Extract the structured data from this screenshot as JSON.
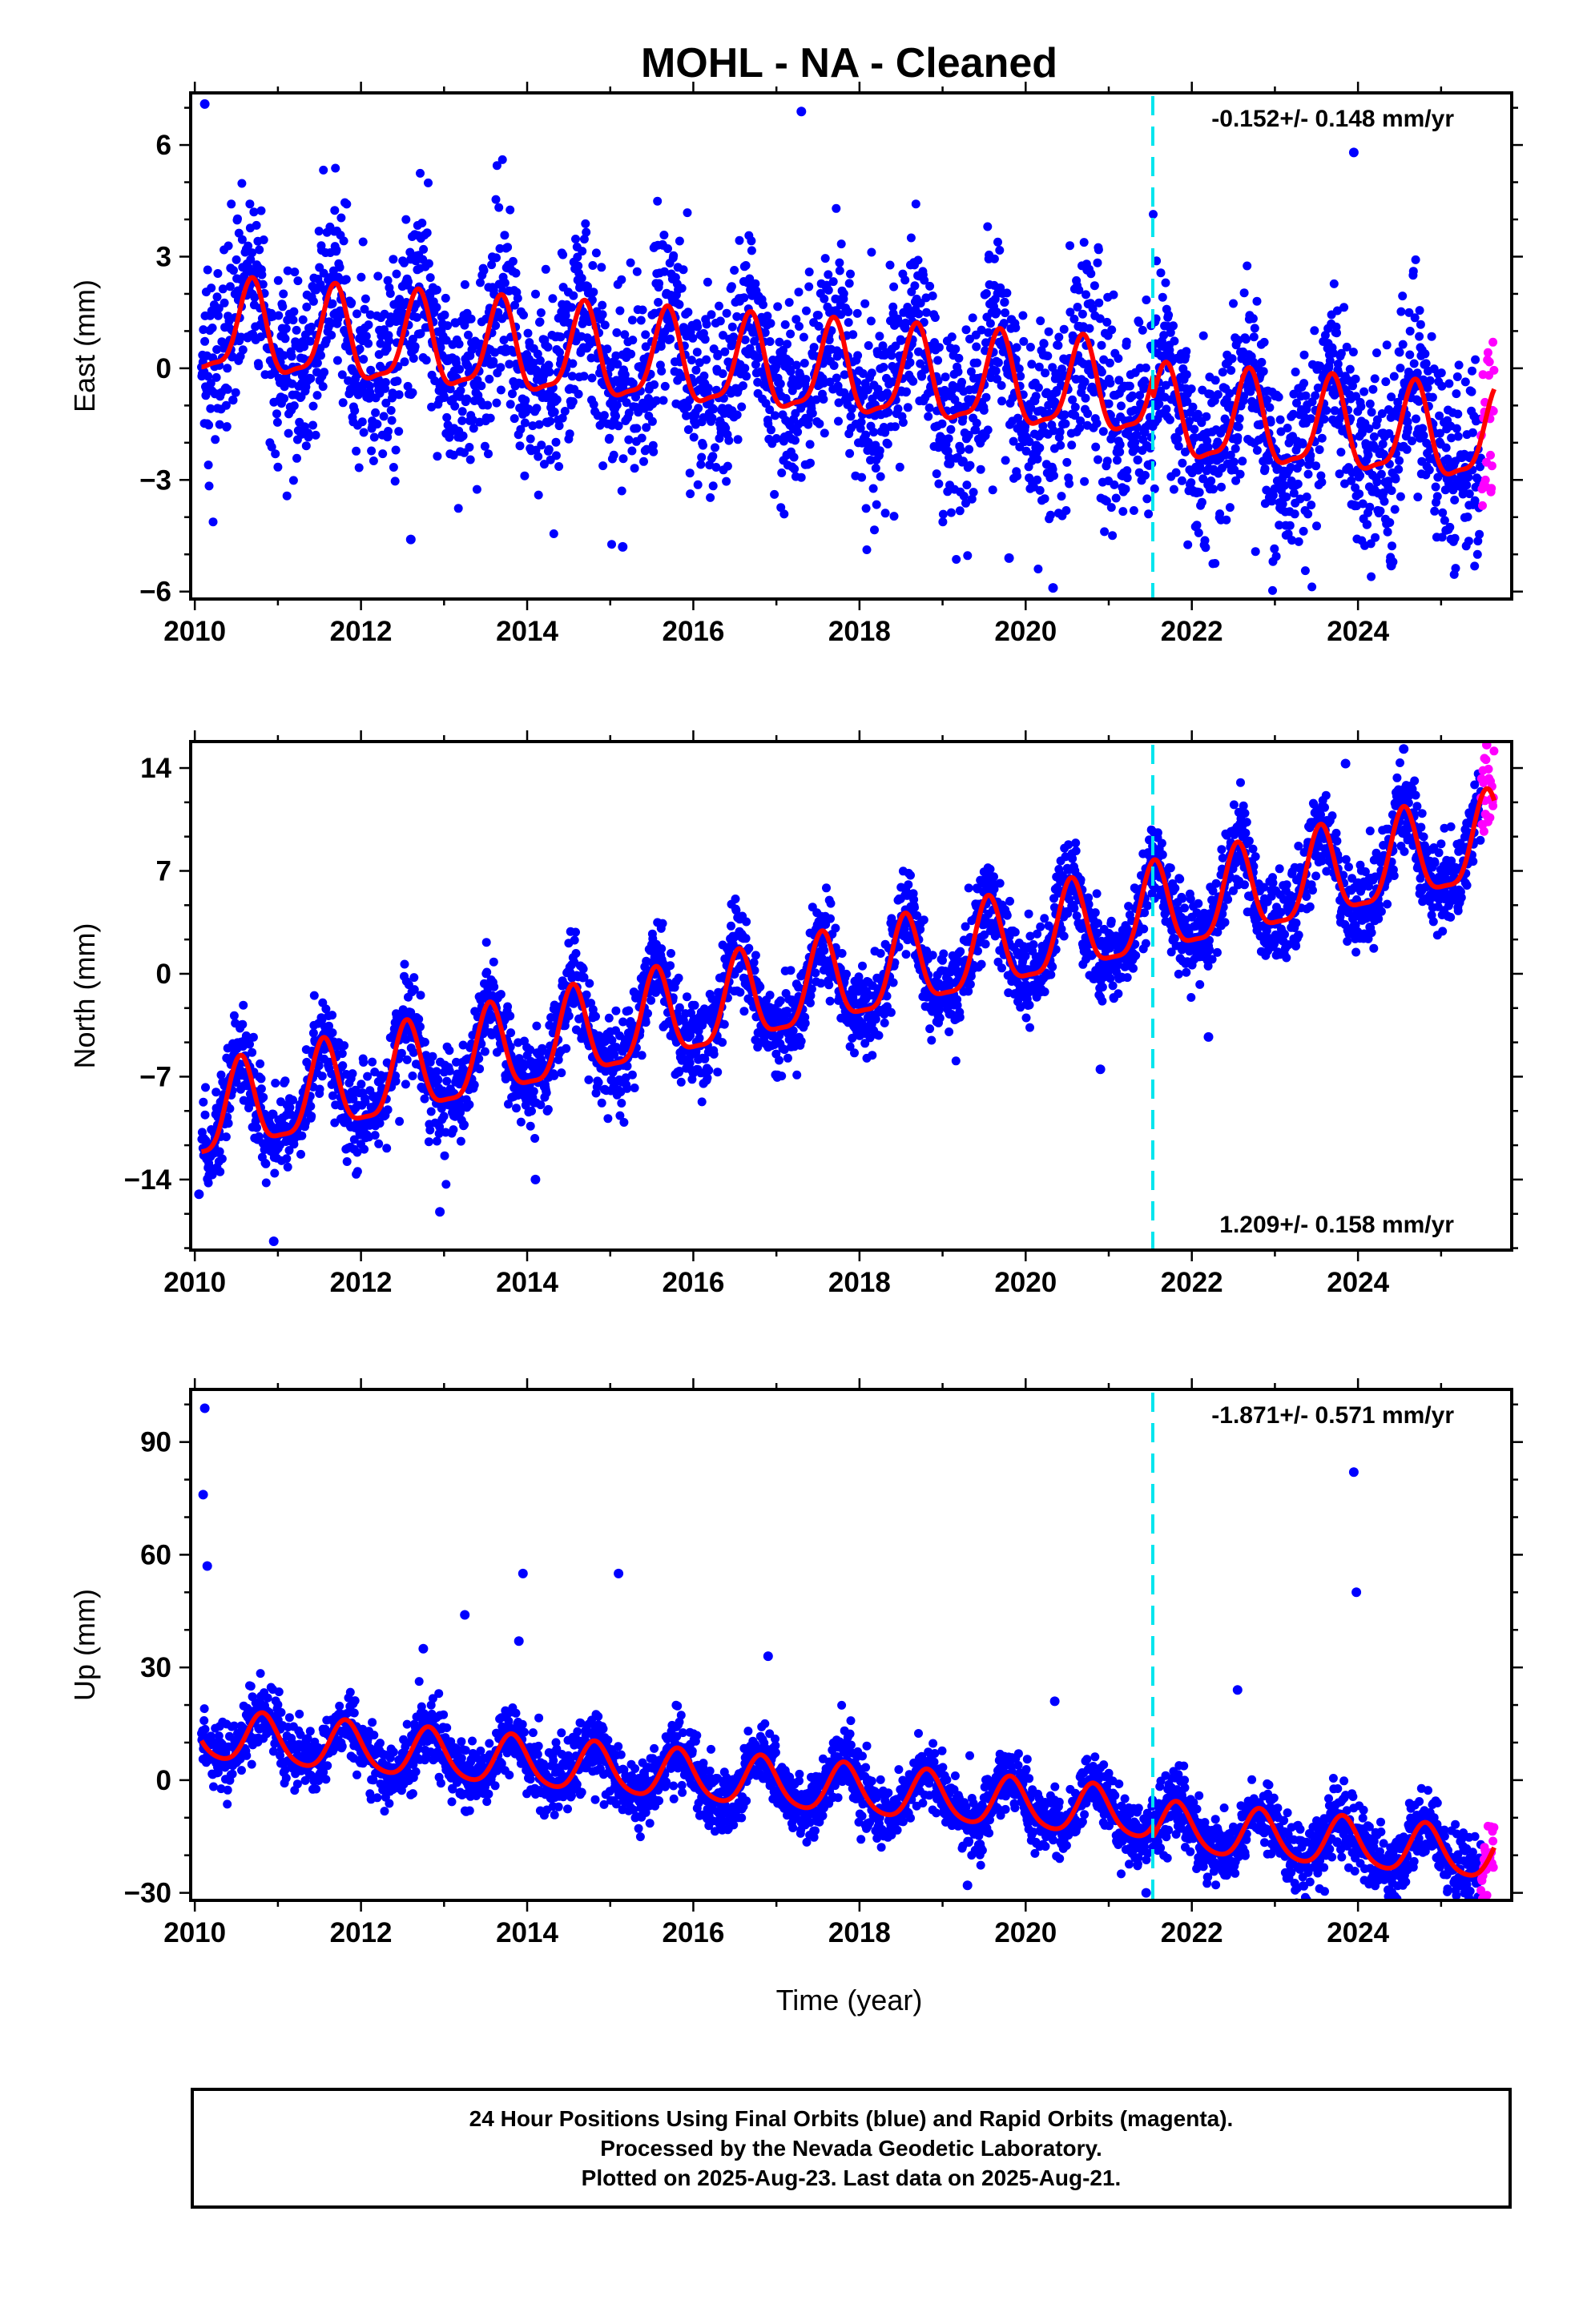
{
  "title": "MOHL  - NA - Cleaned",
  "xlabel": "Time (year)",
  "footer": {
    "line1": "24 Hour Positions Using Final Orbits (blue) and Rapid Orbits (magenta).",
    "line2": "Processed by the Nevada Geodetic Laboratory.",
    "line3": "Plotted on 2025-Aug-23. Last data on 2025-Aug-21."
  },
  "colors": {
    "final_orbits": "#0000ff",
    "rapid_orbits": "#ff00ff",
    "model_fit": "#ff0000",
    "equipment_change": "#00e5ee"
  },
  "chart_data": [
    {
      "type": "scatter",
      "component": "east",
      "ylabel": "East (mm)",
      "rate_text": "-0.152+/- 0.148 mm/yr",
      "rate_position": "top-right",
      "xlim": [
        2009.95,
        2025.85
      ],
      "ylim": [
        -6.2,
        7.4
      ],
      "xticks": [
        2010,
        2012,
        2014,
        2016,
        2018,
        2020,
        2022,
        2024
      ],
      "xtick_labels": [
        "2010",
        "2012",
        "2014",
        "2016",
        "2018",
        "2020",
        "2022",
        "2024"
      ],
      "yticks": [
        -6,
        -3,
        0,
        3,
        6
      ],
      "ytick_labels": [
        "−6",
        "−3",
        "0",
        "3",
        "6"
      ],
      "equipment_change_year": 2021.53,
      "data_start": 2010.08,
      "data_end": 2025.64,
      "rapid_start": 2025.48,
      "model": {
        "intercept_2010": 1.0,
        "rate_mm_per_yr": -0.152,
        "annual_amp": 1.2,
        "annual_peak": 0.68,
        "semiannual_amp": 0.35,
        "semiannual_peak": 0.2,
        "equipment_offset": 0.6
      },
      "daily_scatter_mm": 1.3,
      "outliers": [
        {
          "x": 2010.12,
          "y": 7.1
        },
        {
          "x": 2017.3,
          "y": 6.9
        },
        {
          "x": 2015.15,
          "y": -4.8
        },
        {
          "x": 2020.33,
          "y": -5.9
        },
        {
          "x": 2023.95,
          "y": 5.8
        },
        {
          "x": 2012.6,
          "y": -4.6
        },
        {
          "x": 2019.8,
          "y": -5.1
        },
        {
          "x": 2024.4,
          "y": -5.3
        }
      ]
    },
    {
      "type": "scatter",
      "component": "north",
      "ylabel": "North (mm)",
      "rate_text": "1.209+/- 0.158 mm/yr",
      "rate_position": "bottom-right",
      "xlim": [
        2009.95,
        2025.85
      ],
      "ylim": [
        -18.8,
        15.8
      ],
      "xticks": [
        2010,
        2012,
        2014,
        2016,
        2018,
        2020,
        2022,
        2024
      ],
      "xtick_labels": [
        "2010",
        "2012",
        "2014",
        "2016",
        "2018",
        "2020",
        "2022",
        "2024"
      ],
      "yticks": [
        -14,
        -7,
        0,
        7,
        14
      ],
      "ytick_labels": [
        "−14",
        "−7",
        "0",
        "7",
        "14"
      ],
      "equipment_change_year": 2021.53,
      "data_start": 2010.08,
      "data_end": 2025.64,
      "rapid_start": 2025.48,
      "model": {
        "intercept_2010": -10.0,
        "rate_mm_per_yr": 1.209,
        "annual_amp": 3.0,
        "annual_peak": 0.55,
        "semiannual_amp": 0.8,
        "semiannual_peak": 0.05,
        "equipment_offset": 0.0
      },
      "daily_scatter_mm": 1.5,
      "outliers": [
        {
          "x": 2010.95,
          "y": -18.2
        },
        {
          "x": 2012.95,
          "y": -16.2
        },
        {
          "x": 2014.1,
          "y": -14.0
        },
        {
          "x": 2024.55,
          "y": 15.3
        },
        {
          "x": 2023.85,
          "y": 14.3
        },
        {
          "x": 2022.2,
          "y": -4.3
        },
        {
          "x": 2020.9,
          "y": -6.5
        },
        {
          "x": 2010.05,
          "y": -15.0
        }
      ]
    },
    {
      "type": "scatter",
      "component": "up",
      "ylabel": "Up (mm)",
      "rate_text": "-1.871+/- 0.571 mm/yr",
      "rate_position": "top-right",
      "xlim": [
        2009.95,
        2025.85
      ],
      "ylim": [
        -32,
        104
      ],
      "xticks": [
        2010,
        2012,
        2014,
        2016,
        2018,
        2020,
        2022,
        2024
      ],
      "xtick_labels": [
        "2010",
        "2012",
        "2014",
        "2016",
        "2018",
        "2020",
        "2022",
        "2024"
      ],
      "yticks": [
        -30,
        0,
        30,
        60,
        90
      ],
      "ytick_labels": [
        "−30",
        "0",
        "30",
        "60",
        "90"
      ],
      "equipment_change_year": 2021.53,
      "data_start": 2010.08,
      "data_end": 2025.64,
      "rapid_start": 2025.48,
      "model": {
        "intercept_2010": 12.0,
        "rate_mm_per_yr": -1.871,
        "annual_amp": 6.5,
        "annual_peak": 0.82,
        "semiannual_amp": 1.0,
        "semiannual_peak": 0.3,
        "equipment_offset": 3.0
      },
      "daily_scatter_mm": 4.5,
      "outliers": [
        {
          "x": 2010.12,
          "y": 99
        },
        {
          "x": 2010.1,
          "y": 76
        },
        {
          "x": 2010.15,
          "y": 57
        },
        {
          "x": 2013.25,
          "y": 44
        },
        {
          "x": 2013.95,
          "y": 55
        },
        {
          "x": 2015.1,
          "y": 55
        },
        {
          "x": 2016.9,
          "y": 33
        },
        {
          "x": 2023.95,
          "y": 82
        },
        {
          "x": 2023.98,
          "y": 50
        },
        {
          "x": 2022.55,
          "y": 24
        },
        {
          "x": 2012.75,
          "y": 35
        },
        {
          "x": 2013.9,
          "y": 37
        },
        {
          "x": 2019.3,
          "y": -28
        },
        {
          "x": 2020.35,
          "y": 21
        },
        {
          "x": 2021.45,
          "y": -30
        }
      ]
    }
  ]
}
